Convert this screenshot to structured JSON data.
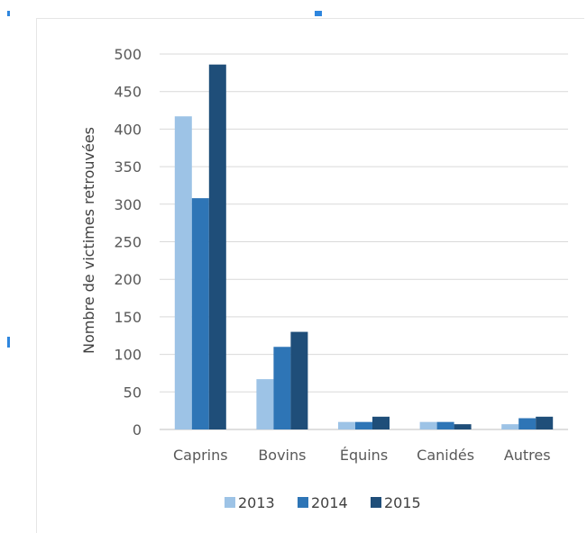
{
  "chart_data": {
    "type": "bar",
    "title": "",
    "xlabel": "",
    "ylabel": "Nombre de victimes retrouvées",
    "ylim": [
      0,
      500
    ],
    "yticks": [
      "0",
      "50",
      "100",
      "150",
      "200",
      "250",
      "300",
      "350",
      "400",
      "450",
      "500"
    ],
    "ytick_values": [
      0,
      50,
      100,
      150,
      200,
      250,
      300,
      350,
      400,
      450,
      500
    ],
    "categories": [
      "Caprins",
      "Bovins",
      "Équins",
      "Canidés",
      "Autres"
    ],
    "series": [
      {
        "name": "2013",
        "color": "#9dc3e6",
        "values": [
          417,
          67,
          10,
          10,
          7
        ]
      },
      {
        "name": "2014",
        "color": "#2e75b6",
        "values": [
          308,
          110,
          10,
          10,
          15
        ]
      },
      {
        "name": "2015",
        "color": "#1f4e79",
        "values": [
          486,
          130,
          17,
          7,
          17
        ]
      }
    ],
    "grid": true,
    "legend_position": "bottom"
  }
}
